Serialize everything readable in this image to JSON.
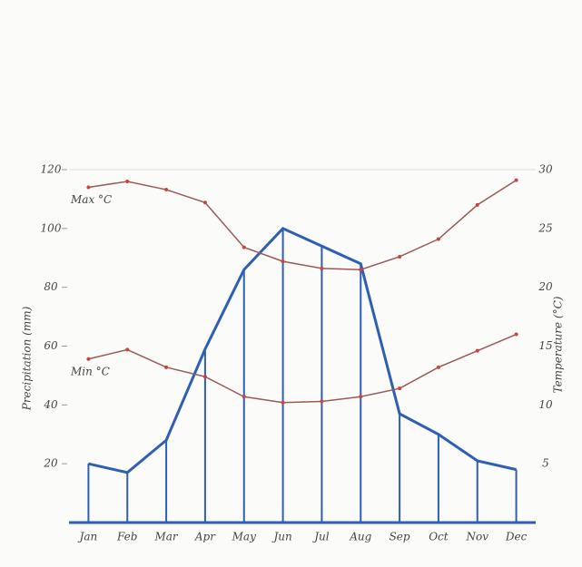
{
  "chart_data": {
    "type": "climate",
    "categories": [
      "Jan",
      "Feb",
      "Mar",
      "Apr",
      "May",
      "Jun",
      "Jul",
      "Aug",
      "Sep",
      "Oct",
      "Nov",
      "Dec"
    ],
    "y_label": "Precipitation (mm)",
    "y2_label": "Temperature (°C)",
    "ylim": [
      0,
      120
    ],
    "yticks": [
      20,
      40,
      60,
      80,
      100,
      120
    ],
    "y2lim": [
      0,
      30
    ],
    "y2ticks": [
      5,
      10,
      15,
      20,
      25,
      30
    ],
    "series": [
      {
        "name": "Precipitation",
        "color": "#2f5fb3",
        "values": [
          20,
          17,
          28,
          59,
          86,
          100,
          94,
          88,
          37,
          30,
          21,
          18
        ]
      },
      {
        "name": "Max °C",
        "color": "#9b5a55",
        "axis": "y2",
        "values": [
          28.5,
          29,
          28.3,
          27.2,
          23.4,
          22.2,
          21.6,
          21.5,
          22.6,
          24.1,
          27,
          29.1
        ]
      },
      {
        "name": "Min °C",
        "color": "#9b5a55",
        "axis": "y2",
        "values": [
          13.9,
          14.7,
          13.2,
          12.4,
          10.7,
          10.2,
          10.3,
          10.7,
          11.4,
          13.2,
          14.6,
          16
        ]
      }
    ]
  }
}
